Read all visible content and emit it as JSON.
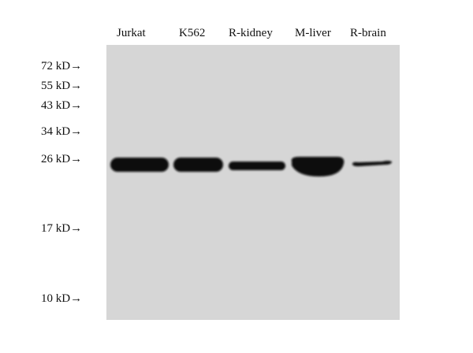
{
  "lanes": [
    "Jurkat",
    "K562",
    "R-kidney",
    "M-liver",
    "R-brain"
  ],
  "markers": [
    "72 kD→",
    "55 kD→",
    "43 kD→",
    "34 kD→",
    "26 kD→",
    "17 kD→",
    "10 kD→"
  ],
  "colors": {
    "membrane": "#d6d6d6",
    "band": "#0a0a0a"
  }
}
